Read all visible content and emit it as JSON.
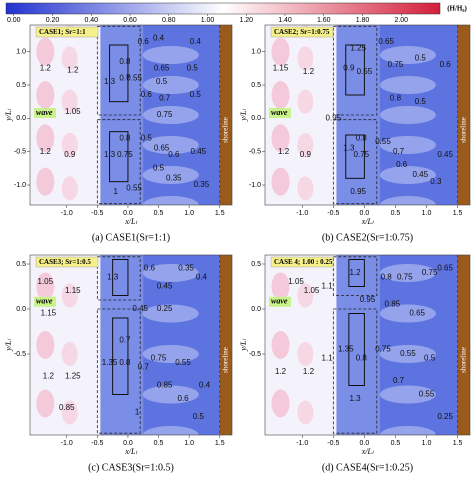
{
  "chart_data": [
    {
      "type": "colorbar",
      "label": "(H/H₀)",
      "colors": [
        "#2233d0",
        "#ffffff",
        "#d41e3a"
      ],
      "xlim": [
        -0.04,
        2.2
      ],
      "xticks": [
        {
          "value": 0,
          "label": "0.00"
        },
        {
          "value": 0.2,
          "label": "0.20"
        },
        {
          "value": 0.4,
          "label": "0.40"
        },
        {
          "value": 0.6,
          "label": "0.60"
        },
        {
          "value": 0.8,
          "label": "0.80"
        },
        {
          "value": 1,
          "label": "1.00"
        },
        {
          "value": 1.2,
          "label": "1.20"
        },
        {
          "value": 1.4,
          "label": "1.40"
        },
        {
          "value": 1.6,
          "label": "1.60"
        },
        {
          "value": 1.8,
          "label": "1.80"
        },
        {
          "value": 2,
          "label": "2.00"
        }
      ]
    },
    {
      "type": "contour",
      "title": "CASE1; Sr=1:1",
      "caption": "(a) CASE1(Sr=1:1)",
      "xlabel": "x/Lₗ",
      "ylabel": "y/Lₗ",
      "wave_label": "wave",
      "shoreline_label": "shoreline",
      "xlim": [
        -1.6,
        1.7
      ],
      "ylim": [
        -1.3,
        1.4
      ],
      "xticks": [
        {
          "value": -1,
          "label": "-1.0"
        },
        -0.5,
        {
          "value": 0,
          "label": "0.0"
        },
        0.5,
        {
          "value": 1,
          "label": "1.0"
        },
        1.5
      ],
      "yticks": [
        {
          "value": -1,
          "label": "-1.0"
        },
        -0.5,
        {
          "value": 0,
          "label": "0.0"
        },
        0.5,
        {
          "value": 1,
          "label": "1.0"
        }
      ],
      "annotations": [
        {
          "x": -1.35,
          "y": 0.75,
          "value": 1.2
        },
        {
          "x": -0.9,
          "y": 0.72,
          "value": 1.2
        },
        {
          "x": -0.9,
          "y": 0.1,
          "value": 1.05
        },
        {
          "x": -1.35,
          "y": -0.5,
          "value": 1.2
        },
        {
          "x": -0.95,
          "y": -0.55,
          "value": 0.9
        },
        {
          "x": -0.3,
          "y": 0.55,
          "value": 1.3
        },
        {
          "x": -0.05,
          "y": 0.85,
          "value": 0.8
        },
        {
          "x": -0.05,
          "y": 0.6,
          "value": 0.7
        },
        {
          "x": 0.1,
          "y": 0.6,
          "value": 0.55
        },
        {
          "x": 0.25,
          "y": 1.15,
          "value": 0.6
        },
        {
          "x": 0.5,
          "y": 1.2,
          "value": 0.4
        },
        {
          "x": 1.1,
          "y": 1.15,
          "value": 0.4
        },
        {
          "x": 0.55,
          "y": 0.75,
          "value": 0.65
        },
        {
          "x": 0.55,
          "y": 0.55,
          "value": 0.5
        },
        {
          "x": 1.05,
          "y": 0.75,
          "value": 0.5
        },
        {
          "x": 0.3,
          "y": 0.35,
          "value": 0.6
        },
        {
          "x": 0.6,
          "y": 0.3,
          "value": 0.7
        },
        {
          "x": 1.1,
          "y": 0.35,
          "value": 0.5
        },
        {
          "x": 0.6,
          "y": 0.05,
          "value": 0.75
        },
        {
          "x": -0.3,
          "y": -0.55,
          "value": 1.3
        },
        {
          "x": -0.05,
          "y": -0.3,
          "value": 0.8
        },
        {
          "x": -0.05,
          "y": -0.55,
          "value": 0.75
        },
        {
          "x": 0.3,
          "y": -0.3,
          "value": 0.5
        },
        {
          "x": 0.55,
          "y": -0.45,
          "value": 0.65
        },
        {
          "x": 0.75,
          "y": -0.55,
          "value": 0.6
        },
        {
          "x": 1.15,
          "y": -0.5,
          "value": 0.45
        },
        {
          "x": 0.5,
          "y": -0.75,
          "value": 0.5
        },
        {
          "x": 0.75,
          "y": -0.9,
          "value": 0.35
        },
        {
          "x": 1.2,
          "y": -1.0,
          "value": 0.35
        },
        {
          "x": 0.1,
          "y": -1.05,
          "value": 0.55
        },
        {
          "x": -0.2,
          "y": -1.1,
          "value": 1
        }
      ]
    },
    {
      "type": "contour",
      "title": "CASE2; Sr=1:0.75",
      "caption": "(b) CASE2(Sr=1:0.75)",
      "xlabel": "x/Lₗ",
      "ylabel": "y/Lₗ",
      "wave_label": "wave",
      "shoreline_label": "shoreline",
      "xlim": [
        -1.6,
        1.7
      ],
      "ylim": [
        -1.3,
        1.4
      ],
      "xticks": [
        {
          "value": -1,
          "label": "-1.0"
        },
        -0.5,
        {
          "value": 0,
          "label": "0.0"
        },
        0.5,
        {
          "value": 1,
          "label": "1.0"
        },
        1.5
      ],
      "yticks": [
        {
          "value": -1,
          "label": "-1.0"
        },
        -0.5,
        {
          "value": 0,
          "label": "0.0"
        },
        0.5,
        {
          "value": 1,
          "label": "1.0"
        }
      ],
      "annotations": [
        {
          "x": -1.35,
          "y": 0.75,
          "value": 1.15
        },
        {
          "x": -0.9,
          "y": 0.7,
          "value": 1.2
        },
        {
          "x": -1.3,
          "y": -0.5,
          "value": 1.2
        },
        {
          "x": -0.95,
          "y": -0.55,
          "value": 0.9
        },
        {
          "x": -0.5,
          "y": 0.0,
          "value": 0.95
        },
        {
          "x": -0.1,
          "y": 1.05,
          "value": 1.25
        },
        {
          "x": -0.25,
          "y": 0.75,
          "value": 0.9
        },
        {
          "x": 0.0,
          "y": 0.7,
          "value": 0.55
        },
        {
          "x": 0.35,
          "y": 1.15,
          "value": 0.65
        },
        {
          "x": 0.5,
          "y": 0.8,
          "value": 0.75
        },
        {
          "x": 0.9,
          "y": 0.9,
          "value": 0.5
        },
        {
          "x": 1.3,
          "y": 0.8,
          "value": 0.6
        },
        {
          "x": 0.5,
          "y": 0.3,
          "value": 0.8
        },
        {
          "x": 0.9,
          "y": 0.25,
          "value": 0.5
        },
        {
          "x": -0.25,
          "y": -0.45,
          "value": 1.3
        },
        {
          "x": -0.05,
          "y": -0.3,
          "value": 0.8
        },
        {
          "x": -0.05,
          "y": -0.55,
          "value": 0.75
        },
        {
          "x": 0.3,
          "y": -0.35,
          "value": 0.55
        },
        {
          "x": 0.55,
          "y": -0.5,
          "value": 0.7
        },
        {
          "x": 0.6,
          "y": -0.7,
          "value": 0.6
        },
        {
          "x": 0.9,
          "y": -0.85,
          "value": 0.45
        },
        {
          "x": 1.3,
          "y": -0.55,
          "value": 0.45
        },
        {
          "x": 1.15,
          "y": -0.95,
          "value": 0.3
        },
        {
          "x": -0.1,
          "y": -1.1,
          "value": 0.95
        }
      ]
    },
    {
      "type": "contour",
      "title": "CASE3; Sr=1:0.5",
      "caption": "(c) CASE3(Sr=1:0.5)",
      "xlabel": "x/Lₗ",
      "ylabel": "y/Lₗ",
      "wave_label": "wave",
      "shoreline_label": "shoreline",
      "xlim": [
        -1.6,
        1.7
      ],
      "ylim": [
        -1.4,
        0.6
      ],
      "xticks": [
        {
          "value": -1,
          "label": "-1.0"
        },
        -0.5,
        {
          "value": 0,
          "label": "0.0"
        },
        0.5,
        {
          "value": 1,
          "label": "1.0"
        },
        1.5
      ],
      "yticks": [
        -0.5,
        {
          "value": 0,
          "label": "0.0"
        },
        0.5
      ],
      "annotations": [
        {
          "x": -1.35,
          "y": 0.3,
          "value": 1.05
        },
        {
          "x": -0.9,
          "y": 0.2,
          "value": 1.15
        },
        {
          "x": -1.3,
          "y": -0.05,
          "value": 1.15
        },
        {
          "x": -1.3,
          "y": -0.75,
          "value": 1.2
        },
        {
          "x": -0.9,
          "y": -0.75,
          "value": 1.25
        },
        {
          "x": -1.0,
          "y": -1.1,
          "value": 0.85
        },
        {
          "x": -0.25,
          "y": 0.35,
          "value": 1.3
        },
        {
          "x": 0.35,
          "y": 0.45,
          "value": 0.6
        },
        {
          "x": 0.6,
          "y": 0.25,
          "value": 0.45
        },
        {
          "x": 0.95,
          "y": 0.45,
          "value": 0.35
        },
        {
          "x": 1.2,
          "y": 0.35,
          "value": 0.4
        },
        {
          "x": 0.2,
          "y": 0.0,
          "value": 0.45
        },
        {
          "x": 0.6,
          "y": 0.0,
          "value": 0.25
        },
        {
          "x": -0.3,
          "y": -0.6,
          "value": 1.35
        },
        {
          "x": -0.05,
          "y": -0.35,
          "value": 0.7
        },
        {
          "x": -0.05,
          "y": -0.6,
          "value": 0.8
        },
        {
          "x": 0.25,
          "y": -0.65,
          "value": 0.7
        },
        {
          "x": 0.5,
          "y": -0.55,
          "value": 0.75
        },
        {
          "x": 0.9,
          "y": -0.6,
          "value": 0.55
        },
        {
          "x": 0.6,
          "y": -0.85,
          "value": 0.85
        },
        {
          "x": 0.9,
          "y": -1.0,
          "value": 0.6
        },
        {
          "x": 1.25,
          "y": -0.85,
          "value": 0.4
        },
        {
          "x": 1.15,
          "y": -1.2,
          "value": 0.5
        },
        {
          "x": 0.15,
          "y": -1.15,
          "value": 1
        }
      ]
    },
    {
      "type": "contour",
      "title": "CASE 4; 1.00 : 0.25",
      "caption": "(d) CASE4(Sr=1:0.25)",
      "xlabel": "x/Lₗ",
      "ylabel": "y/Lₗ",
      "wave_label": "wave",
      "shoreline_label": "shoreline",
      "xlim": [
        -1.6,
        1.7
      ],
      "ylim": [
        -1.4,
        0.6
      ],
      "xticks": [
        {
          "value": -1,
          "label": "-1.0"
        },
        -0.5,
        {
          "value": 0,
          "label": "0.0"
        },
        0.5,
        {
          "value": 1,
          "label": "1.0"
        },
        1.5
      ],
      "yticks": [
        -0.5,
        {
          "value": 0,
          "label": "0.0"
        },
        0.5
      ],
      "annotations": [
        {
          "x": -1.1,
          "y": 0.3,
          "value": 1.05
        },
        {
          "x": -0.85,
          "y": 0.2,
          "value": 1.05
        },
        {
          "x": -0.6,
          "y": 0.25,
          "value": 1.1
        },
        {
          "x": -1.35,
          "y": -0.7,
          "value": 1.2
        },
        {
          "x": -0.9,
          "y": -0.7,
          "value": 1.2
        },
        {
          "x": -0.6,
          "y": -0.55,
          "value": 1.1
        },
        {
          "x": -0.15,
          "y": 0.4,
          "value": 1.2
        },
        {
          "x": 0.05,
          "y": 0.1,
          "value": 0.95
        },
        {
          "x": 0.35,
          "y": 0.35,
          "value": 0.8
        },
        {
          "x": 0.65,
          "y": 0.35,
          "value": 0.75
        },
        {
          "x": 1.05,
          "y": 0.4,
          "value": 0.75
        },
        {
          "x": 1.3,
          "y": 0.45,
          "value": 0.65
        },
        {
          "x": 0.45,
          "y": 0.05,
          "value": 0.85
        },
        {
          "x": 0.85,
          "y": -0.05,
          "value": 0.65
        },
        {
          "x": -0.3,
          "y": -0.45,
          "value": 1.35
        },
        {
          "x": -0.05,
          "y": -0.55,
          "value": 0.8
        },
        {
          "x": 0.3,
          "y": -0.45,
          "value": 0.75
        },
        {
          "x": 0.7,
          "y": -0.5,
          "value": 0.55
        },
        {
          "x": 1.05,
          "y": -0.55,
          "value": 0.5
        },
        {
          "x": 0.55,
          "y": -0.8,
          "value": 0.7
        },
        {
          "x": 1.0,
          "y": -0.95,
          "value": 0.55
        },
        {
          "x": 1.3,
          "y": -1.2,
          "value": 0.25
        },
        {
          "x": -0.15,
          "y": -1.0,
          "value": 1.3
        }
      ]
    }
  ]
}
